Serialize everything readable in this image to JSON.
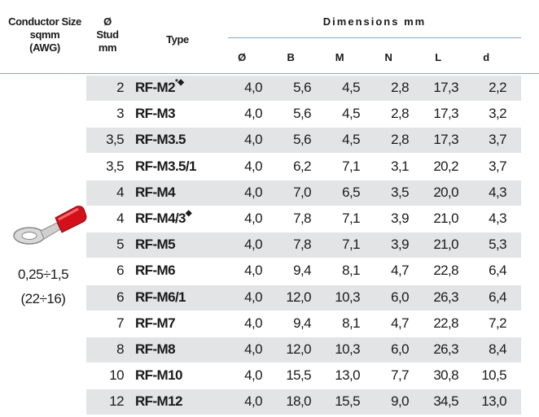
{
  "header": {
    "conductor": [
      "Conductor Size",
      "sqmm",
      "(AWG)"
    ],
    "stud": [
      "Ø",
      "Stud",
      "mm"
    ],
    "type": "Type",
    "dimensions": "Dimensions mm",
    "dims": [
      "Ø",
      "B",
      "M",
      "N",
      "L",
      "d"
    ]
  },
  "range": [
    "0,25÷1,5",
    "(22÷16)"
  ],
  "rows": [
    {
      "stud": "2",
      "type": "RF-M2",
      "mark": "*◆",
      "values": [
        "4,0",
        "5,6",
        "4,5",
        "2,8",
        "17,3",
        "2,2"
      ]
    },
    {
      "stud": "3",
      "type": "RF-M3",
      "values": [
        "4,0",
        "5,6",
        "4,5",
        "2,8",
        "17,3",
        "3,2"
      ]
    },
    {
      "stud": "3,5",
      "type": "RF-M3.5",
      "values": [
        "4,0",
        "5,6",
        "4,5",
        "2,8",
        "17,3",
        "3,7"
      ]
    },
    {
      "stud": "3,5",
      "type": "RF-M3.5/1",
      "values": [
        "4,0",
        "6,2",
        "7,1",
        "3,1",
        "20,2",
        "3,7"
      ]
    },
    {
      "stud": "4",
      "type": "RF-M4",
      "values": [
        "4,0",
        "7,0",
        "6,5",
        "3,5",
        "20,0",
        "4,3"
      ]
    },
    {
      "stud": "4",
      "type": "RF-M4/3",
      "mark": "◆",
      "values": [
        "4,0",
        "7,8",
        "7,1",
        "3,9",
        "21,0",
        "4,3"
      ]
    },
    {
      "stud": "5",
      "type": "RF-M5",
      "values": [
        "4,0",
        "7,8",
        "7,1",
        "3,9",
        "21,0",
        "5,3"
      ]
    },
    {
      "stud": "6",
      "type": "RF-M6",
      "values": [
        "4,0",
        "9,4",
        "8,1",
        "4,7",
        "22,8",
        "6,4"
      ]
    },
    {
      "stud": "6",
      "type": "RF-M6/1",
      "values": [
        "4,0",
        "12,0",
        "10,3",
        "6,0",
        "26,3",
        "6,4"
      ]
    },
    {
      "stud": "7",
      "type": "RF-M7",
      "values": [
        "4,0",
        "9,4",
        "8,1",
        "4,7",
        "22,8",
        "7,2"
      ]
    },
    {
      "stud": "8",
      "type": "RF-M8",
      "values": [
        "4,0",
        "12,0",
        "10,3",
        "6,0",
        "26,3",
        "8,4"
      ]
    },
    {
      "stud": "10",
      "type": "RF-M10",
      "values": [
        "4,0",
        "15,5",
        "13,0",
        "7,7",
        "30,8",
        "10,5"
      ]
    },
    {
      "stud": "12",
      "type": "RF-M12",
      "values": [
        "4,0",
        "18,0",
        "15,5",
        "9,0",
        "34,5",
        "13,0"
      ]
    }
  ]
}
